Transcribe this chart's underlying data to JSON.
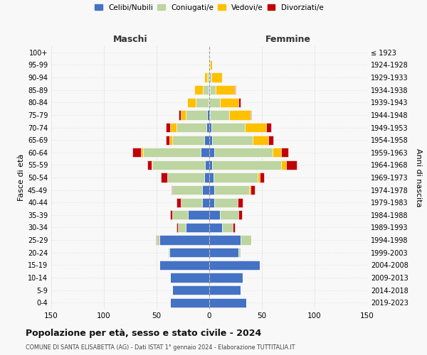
{
  "age_groups": [
    "0-4",
    "5-9",
    "10-14",
    "15-19",
    "20-24",
    "25-29",
    "30-34",
    "35-39",
    "40-44",
    "45-49",
    "50-54",
    "55-59",
    "60-64",
    "65-69",
    "70-74",
    "75-79",
    "80-84",
    "85-89",
    "90-94",
    "95-99",
    "100+"
  ],
  "birth_years": [
    "2019-2023",
    "2014-2018",
    "2009-2013",
    "2004-2008",
    "1999-2003",
    "1994-1998",
    "1989-1993",
    "1984-1988",
    "1979-1983",
    "1974-1978",
    "1969-1973",
    "1964-1968",
    "1959-1963",
    "1954-1958",
    "1949-1953",
    "1944-1948",
    "1939-1943",
    "1934-1938",
    "1929-1933",
    "1924-1928",
    "≤ 1923"
  ],
  "males": {
    "celibi": [
      37,
      35,
      37,
      47,
      38,
      47,
      22,
      20,
      7,
      7,
      5,
      4,
      8,
      5,
      3,
      2,
      1,
      1,
      1,
      0,
      0
    ],
    "coniugati": [
      0,
      0,
      0,
      0,
      1,
      3,
      8,
      15,
      20,
      28,
      35,
      50,
      55,
      30,
      28,
      20,
      12,
      5,
      1,
      0,
      0
    ],
    "vedovi": [
      0,
      0,
      0,
      0,
      0,
      0,
      0,
      0,
      0,
      0,
      0,
      1,
      2,
      3,
      6,
      5,
      8,
      8,
      3,
      1,
      0
    ],
    "divorziati": [
      0,
      0,
      0,
      0,
      0,
      1,
      1,
      2,
      4,
      1,
      6,
      4,
      8,
      3,
      4,
      2,
      0,
      0,
      0,
      0,
      0
    ]
  },
  "females": {
    "nubili": [
      35,
      30,
      32,
      48,
      28,
      30,
      12,
      10,
      5,
      5,
      4,
      3,
      5,
      3,
      2,
      1,
      0,
      1,
      0,
      0,
      0
    ],
    "coniugate": [
      0,
      0,
      0,
      0,
      2,
      10,
      10,
      18,
      22,
      33,
      42,
      65,
      55,
      38,
      32,
      18,
      10,
      5,
      2,
      1,
      0
    ],
    "vedove": [
      0,
      0,
      0,
      0,
      0,
      0,
      0,
      0,
      0,
      1,
      2,
      5,
      8,
      15,
      20,
      20,
      18,
      18,
      10,
      2,
      0
    ],
    "divorziate": [
      0,
      0,
      0,
      0,
      0,
      0,
      2,
      3,
      5,
      4,
      4,
      10,
      7,
      5,
      5,
      1,
      2,
      1,
      0,
      0,
      0
    ]
  },
  "colors": {
    "celibi": "#4472c4",
    "coniugati": "#bdd5a0",
    "vedovi": "#ffc000",
    "divorziati": "#c0000a"
  },
  "xlim": 150,
  "title": "Popolazione per età, sesso e stato civile - 2024",
  "subtitle": "COMUNE DI SANTA ELISABETTA (AG) - Dati ISTAT 1° gennaio 2024 - Elaborazione TUTTITALIA.IT",
  "ylabel_left": "Fasce di età",
  "ylabel_right": "Anni di nascita",
  "xlabel_left": "Maschi",
  "xlabel_right": "Femmine",
  "legend_labels": [
    "Celibi/Nubili",
    "Coniugati/e",
    "Vedovi/e",
    "Divorziati/e"
  ],
  "background_color": "#f8f8f8",
  "grid_color": "#cccccc"
}
